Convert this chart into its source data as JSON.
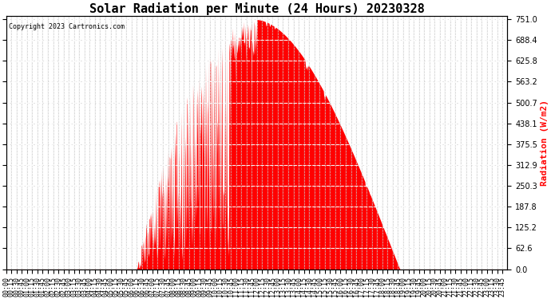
{
  "title": "Solar Radiation per Minute (24 Hours) 20230328",
  "copyright_text": "Copyright 2023 Cartronics.com",
  "ylabel": "Radiation (W/m2)",
  "ylabel_color": "#ff0000",
  "background_color": "#ffffff",
  "fill_color": "#ff0000",
  "line_color": "#ff0000",
  "grid_color_minor": "#cccccc",
  "grid_color_major": "#aaaaaa",
  "dashed_line_color": "#ff0000",
  "y_min": 0.0,
  "y_max": 751.0,
  "y_ticks": [
    0.0,
    62.6,
    125.2,
    187.8,
    250.3,
    312.9,
    375.5,
    438.1,
    500.7,
    563.2,
    625.8,
    688.4,
    751.0
  ],
  "total_minutes": 1440,
  "sunrise_minute": 375,
  "sunset_minute": 1130,
  "peak_minute": 760,
  "peak_value": 751.0,
  "x_tick_interval": 15,
  "title_fontsize": 11,
  "tick_fontsize": 6,
  "label_fontsize": 8,
  "figwidth": 6.9,
  "figheight": 3.75,
  "dpi": 100
}
